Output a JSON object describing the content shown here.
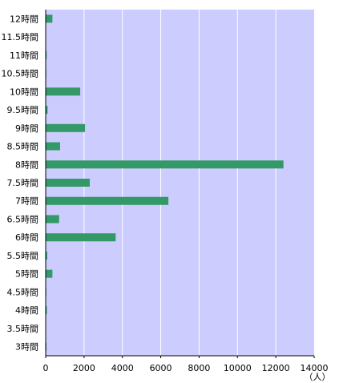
{
  "chart_data": {
    "type": "bar",
    "orientation": "horizontal",
    "categories": [
      "12時間",
      "11.5時間",
      "11時間",
      "10.5時間",
      "10時間",
      "9.5時間",
      "9時間",
      "8.5時間",
      "8時間",
      "7.5時間",
      "7時間",
      "6.5時間",
      "6時間",
      "5.5時間",
      "5時間",
      "4.5時間",
      "4時間",
      "3.5時間",
      "3時間"
    ],
    "values": [
      350,
      20,
      50,
      30,
      1800,
      100,
      2050,
      750,
      12400,
      2300,
      6400,
      700,
      3650,
      80,
      350,
      30,
      60,
      10,
      40
    ],
    "xlim": [
      0,
      14000
    ],
    "xticks": [
      0,
      2000,
      4000,
      6000,
      8000,
      10000,
      12000,
      14000
    ],
    "unit_label": "（人）",
    "grid": "vertical",
    "colors": {
      "plot_background": "#ccccff",
      "bar": "#339966",
      "grid": "#ffffff"
    }
  }
}
